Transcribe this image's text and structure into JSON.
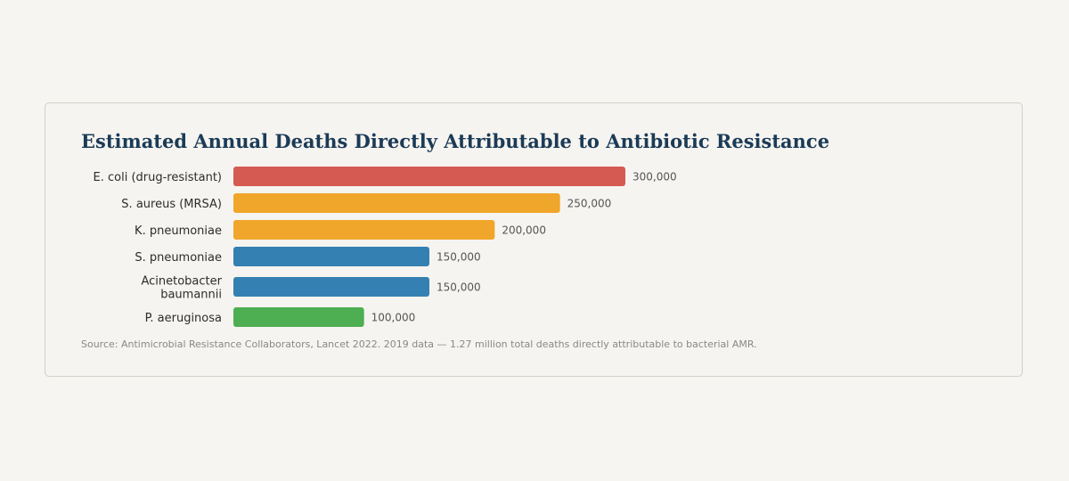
{
  "chart_data": {
    "type": "bar",
    "orientation": "horizontal",
    "title": "Estimated Annual Deaths Directly Attributable to Antibiotic Resistance",
    "categories": [
      [
        "E. coli (drug-resistant)"
      ],
      [
        "S. aureus (MRSA)"
      ],
      [
        "K. pneumoniae"
      ],
      [
        "S. pneumoniae"
      ],
      [
        "Acinetobacter",
        "baumannii"
      ],
      [
        "P. aeruginosa"
      ]
    ],
    "values": [
      300000,
      250000,
      200000,
      150000,
      150000,
      100000
    ],
    "value_labels": [
      "300,000",
      "250,000",
      "200,000",
      "150,000",
      "150,000",
      "100,000"
    ],
    "colors": [
      "#d55a52",
      "#f0a62a",
      "#f0a62a",
      "#3480b3",
      "#3480b3",
      "#4daf52"
    ],
    "xlim": [
      0,
      300000
    ],
    "grid": false,
    "legend": "none",
    "source": "Source: Antimicrobial Resistance Collaborators, Lancet 2022. 2019 data — 1.27 million total deaths directly attributable to bacterial AMR."
  }
}
